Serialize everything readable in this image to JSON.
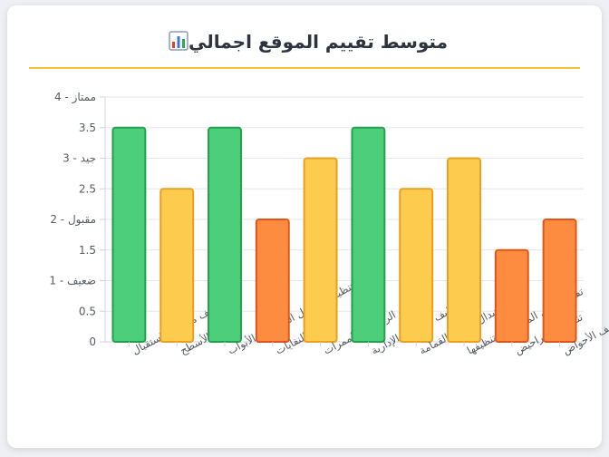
{
  "title": "متوسط تقييم الموقع اجمالي",
  "title_icon": "bar-chart-icon",
  "colors": {
    "accent": "#f2c230",
    "good": "#4cce7a",
    "good_border": "#22a04e",
    "ok": "#fdcc4e",
    "ok_border": "#e8a020",
    "weak": "#fd8c40",
    "weak_border": "#e0561a"
  },
  "chart_data": {
    "type": "bar",
    "title": "متوسط تقييم الموقع اجمالي",
    "categories": [
      "تنظيف منطقة الاستقبال",
      "تنظيف الأسطح",
      "تنظيف المدخل الرئيسي والأبواب",
      "جمع النفايات",
      "تنظيف الردهات والممرات",
      "تنظيف المكاتب الإدارية",
      "استبدال أكياس القمامة",
      "تفريغ سلال المهملات وتنظيفها",
      "تنظيف المراحيض",
      "تنظيف الأحواض"
    ],
    "values": [
      3.5,
      2.5,
      3.5,
      2,
      3,
      3.5,
      2.5,
      3,
      1.5,
      2
    ],
    "ylim": [
      0,
      4
    ],
    "yticks": [
      "0",
      "0.5",
      "1 - ضعيف",
      "1.5",
      "2 - مقبول",
      "2.5",
      "3 - جيد",
      "3.5",
      "4 - ممتاز"
    ],
    "grid": true,
    "legend": "none"
  }
}
